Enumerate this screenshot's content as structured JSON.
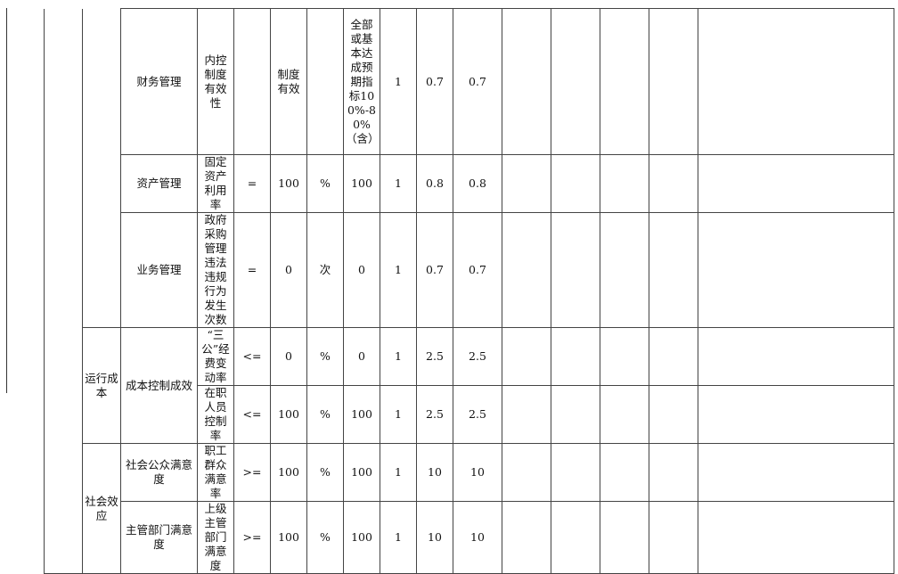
{
  "rows": [
    {
      "l2": "财务管理",
      "l3": "内控制度有效性",
      "op": "",
      "target": "制度有效",
      "unit": "",
      "actual": "全部或基本达成预期指标100%-80%（含）",
      "c1": "1",
      "c2": "0.7",
      "c3": "0.7"
    },
    {
      "l2": "资产管理",
      "l3": "固定资产利用率",
      "op": "=",
      "target": "100",
      "unit": "%",
      "actual": "100",
      "c1": "1",
      "c2": "0.8",
      "c3": "0.8"
    },
    {
      "l2": "业务管理",
      "l3": "政府采购管理违法违规行为发生次数",
      "op": "=",
      "target": "0",
      "unit": "次",
      "actual": "0",
      "c1": "1",
      "c2": "0.7",
      "c3": "0.7"
    },
    {
      "l2": "成本控制成效",
      "l3": "“三公”经费变动率",
      "op": "<=",
      "target": "0",
      "unit": "%",
      "actual": "0",
      "c1": "1",
      "c2": "2.5",
      "c3": "2.5"
    },
    {
      "l2": "",
      "l3": "在职人员控制率",
      "op": "<=",
      "target": "100",
      "unit": "%",
      "actual": "100",
      "c1": "1",
      "c2": "2.5",
      "c3": "2.5"
    },
    {
      "l2": "社会公众满意度",
      "l3": "职工群众满意率",
      "op": ">=",
      "target": "100",
      "unit": "%",
      "actual": "100",
      "c1": "1",
      "c2": "10",
      "c3": "10"
    },
    {
      "l2": "主管部门满意度",
      "l3": "上级主管部门满意度",
      "op": ">=",
      "target": "100",
      "unit": "%",
      "actual": "100",
      "c1": "1",
      "c2": "10",
      "c3": "10"
    }
  ],
  "groups": {
    "operating_cost": "运行成本",
    "social_effect": "社会效应"
  }
}
